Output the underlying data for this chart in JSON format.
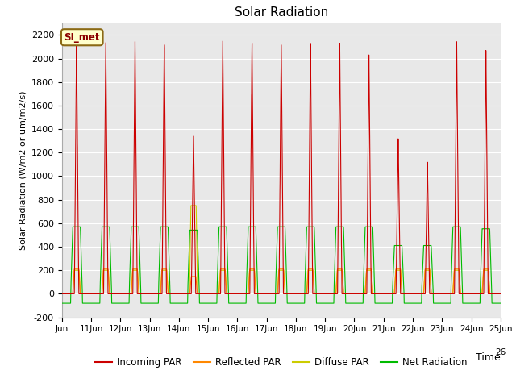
{
  "title": "Solar Radiation",
  "xlabel": "Time",
  "ylabel": "Solar Radiation (W/m2 or um/m2/s)",
  "ylim": [
    -200,
    2300
  ],
  "yticks": [
    -200,
    0,
    200,
    400,
    600,
    800,
    1000,
    1200,
    1400,
    1600,
    1800,
    2000,
    2200
  ],
  "annotation_text": "SI_met",
  "annotation_bg": "#ffffcc",
  "annotation_border": "#8b6914",
  "colors": {
    "incoming_par": "#cc0000",
    "reflected_par": "#ff8800",
    "diffuse_par": "#cccc00",
    "net_radiation": "#00bb00"
  },
  "legend_labels": [
    "Incoming PAR",
    "Reflected PAR",
    "Diffuse PAR",
    "Net Radiation"
  ],
  "plot_bg": "#e8e8e8",
  "n_days": 15,
  "peak_incoming": 2150,
  "peak_reflected": 210,
  "peak_diffuse": 200,
  "peak_net": 570,
  "night_net": -80,
  "day_scales_incoming": [
    1.0,
    1.0,
    1.0,
    1.0,
    0.62,
    1.0,
    1.0,
    1.0,
    1.0,
    1.0,
    0.95,
    0.62,
    0.52,
    1.0,
    0.97
  ],
  "day_scales_net": [
    1.0,
    1.0,
    1.0,
    1.0,
    0.95,
    1.0,
    1.0,
    1.0,
    1.0,
    1.0,
    1.0,
    0.72,
    0.72,
    1.0,
    0.97
  ]
}
